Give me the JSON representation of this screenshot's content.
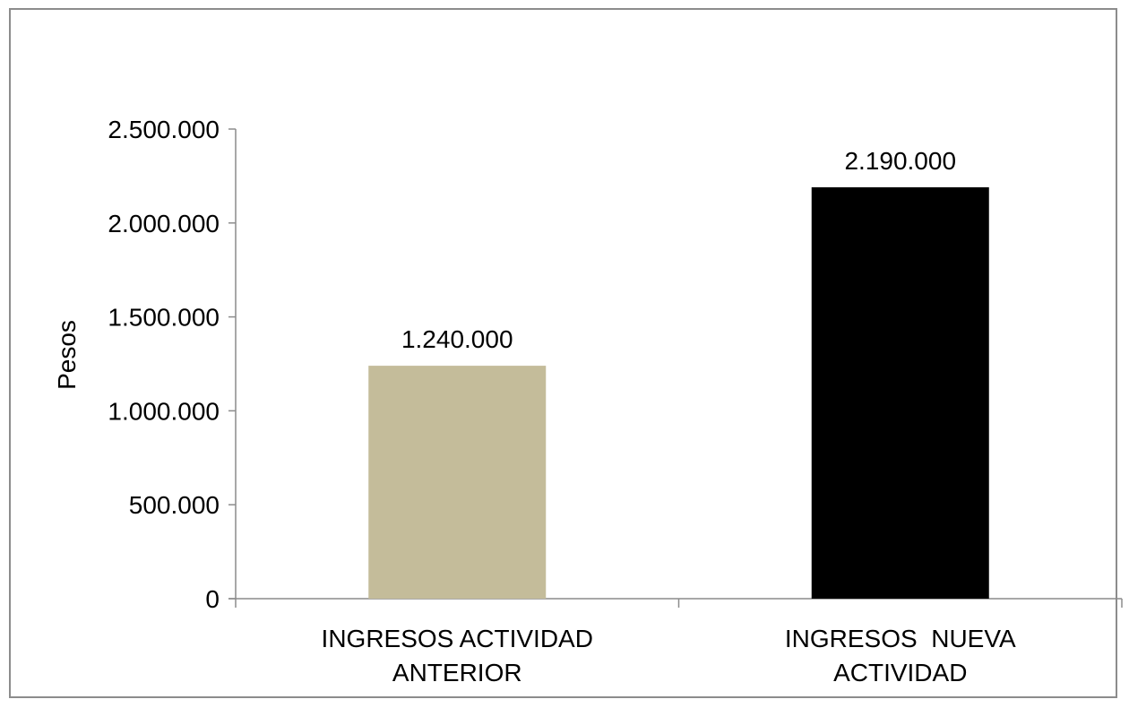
{
  "chart_data": {
    "type": "bar",
    "categories": [
      [
        "INGRESOS ACTIVIDAD",
        "ANTERIOR"
      ],
      [
        "INGRESOS  NUEVA",
        "ACTIVIDAD"
      ]
    ],
    "values": [
      1240000,
      2190000
    ],
    "data_labels": [
      "1.240.000",
      "2.190.000"
    ],
    "bar_colors": [
      "#c4bc9a",
      "#000000"
    ],
    "ylabel": "Pesos",
    "xlabel": "",
    "ylim": [
      0,
      2500000
    ],
    "yticks": [
      0,
      500000,
      1000000,
      1500000,
      2000000,
      2500000
    ],
    "ytick_labels": [
      "0",
      "500.000",
      "1.000.000",
      "1.500.000",
      "2.000.000",
      "2.500.000"
    ],
    "grid": false,
    "legend": "none",
    "axis_color": "#8c8c8c"
  }
}
